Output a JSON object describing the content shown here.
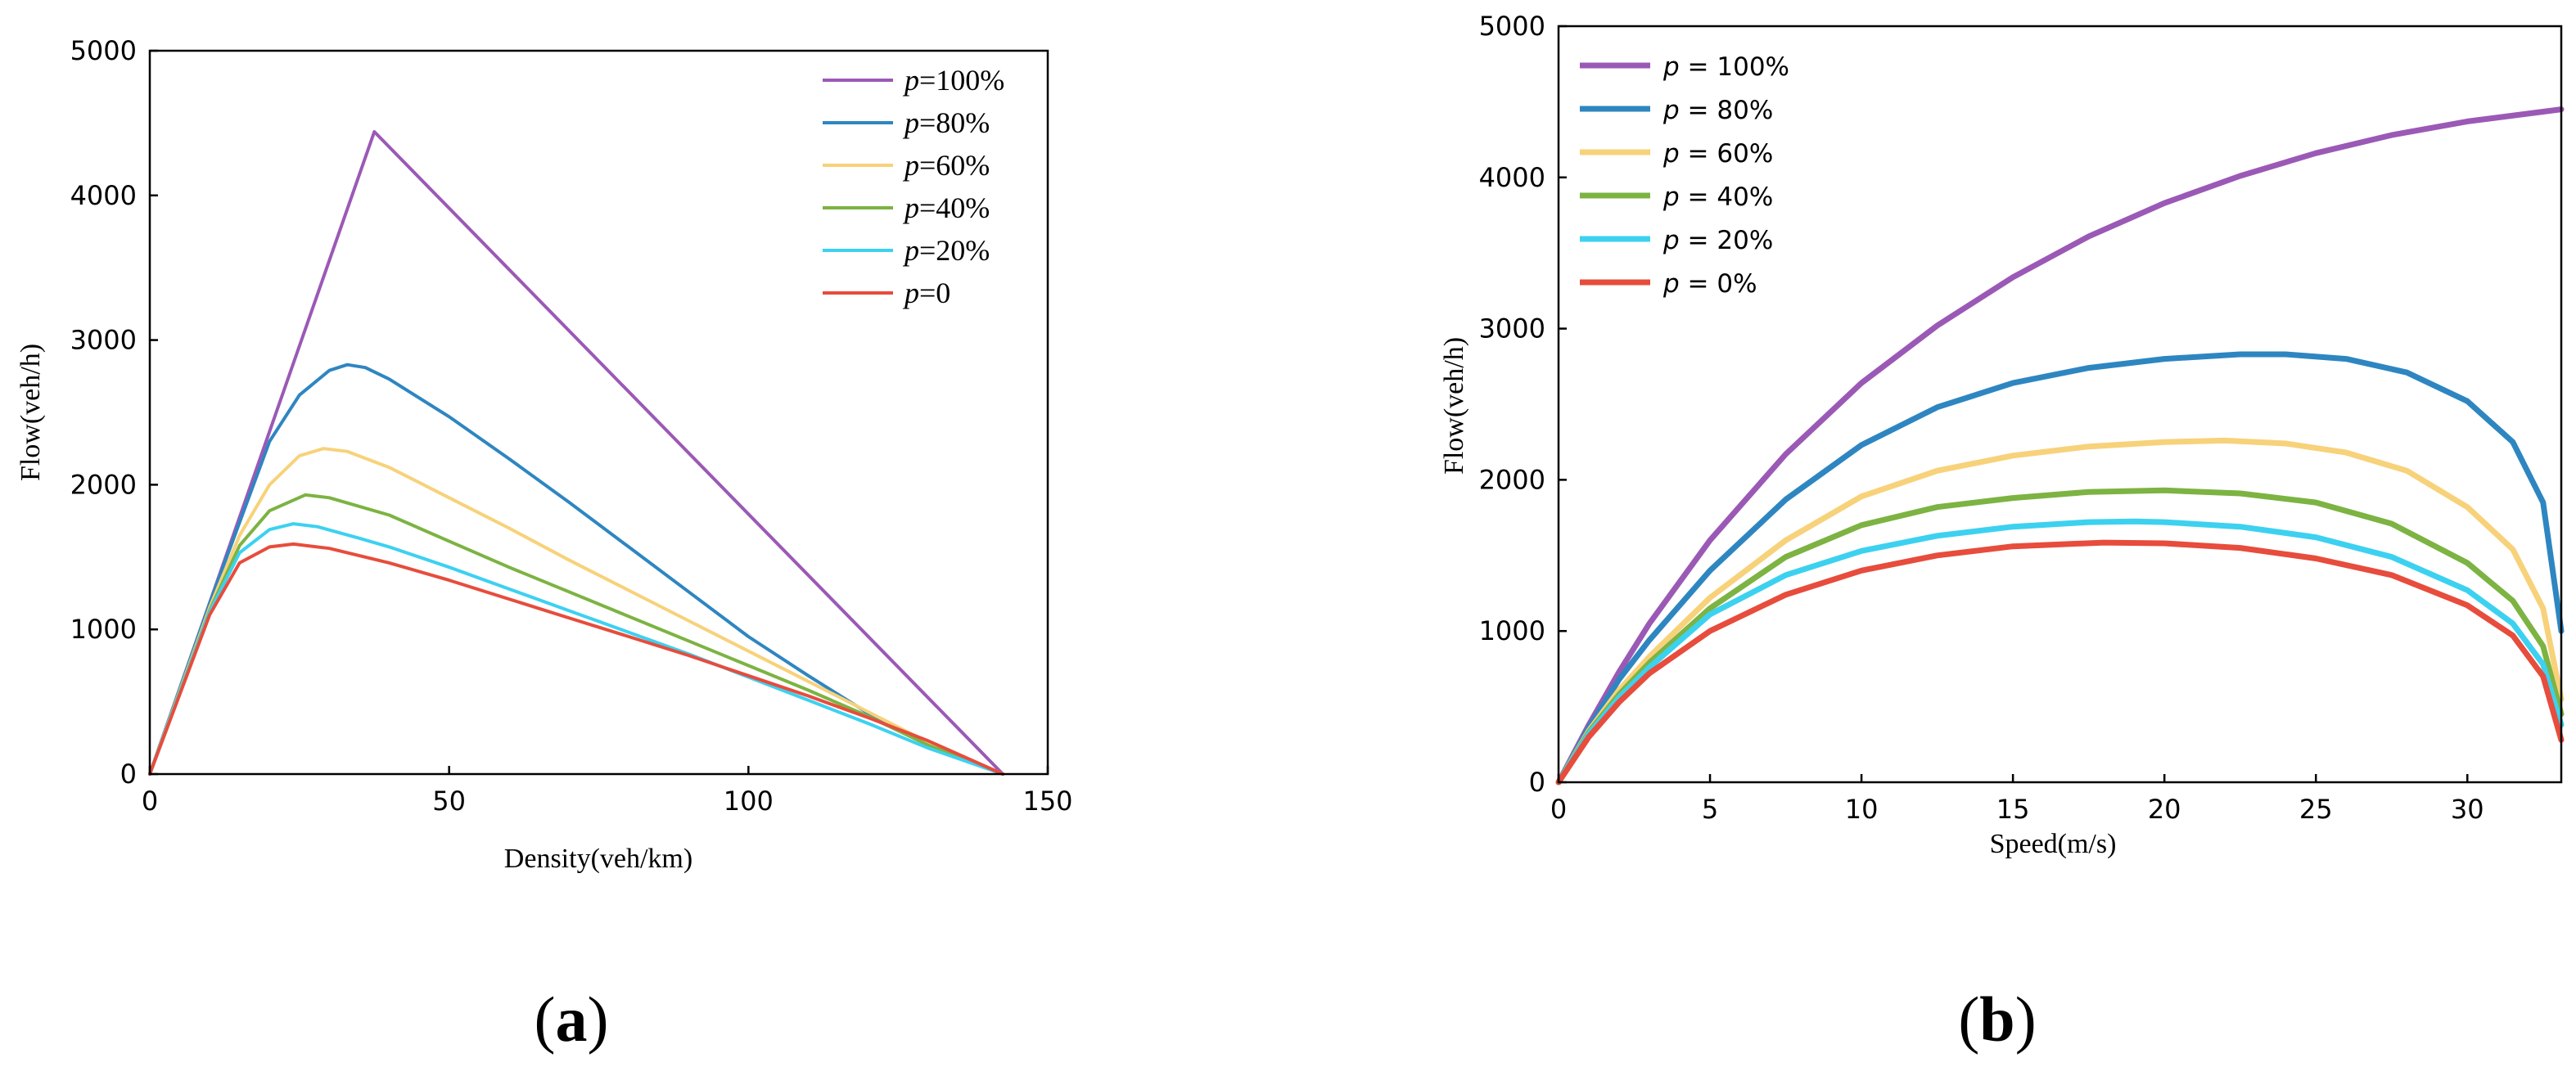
{
  "chart_data": [
    {
      "id": "a",
      "type": "line",
      "panel_label": "(a)",
      "panel_letter": "a",
      "xlabel": "Density(veh/km)",
      "ylabel": "Flow(veh/h)",
      "xlim": [
        0,
        150
      ],
      "ylim": [
        0,
        5000
      ],
      "xticks": [
        "0",
        "50",
        "100",
        "150"
      ],
      "yticks": [
        "0",
        "1000",
        "2000",
        "3000",
        "4000",
        "5000"
      ],
      "legend_position": "top-right",
      "series": [
        {
          "name": "p=100%",
          "legend": {
            "italic": "p",
            "rest": "=100%"
          },
          "color": "#9b59b6",
          "x": [
            0,
            37.5,
            142.5
          ],
          "y": [
            0,
            4440,
            0
          ]
        },
        {
          "name": "p=80%",
          "legend": {
            "italic": "p",
            "rest": "=80%"
          },
          "color": "#2e86c1",
          "x": [
            0,
            10,
            20,
            25,
            30,
            33,
            36,
            40,
            50,
            60,
            70,
            80,
            90,
            100,
            110,
            120,
            130,
            142.5
          ],
          "y": [
            0,
            1180,
            2300,
            2620,
            2790,
            2830,
            2810,
            2730,
            2470,
            2180,
            1880,
            1570,
            1260,
            950,
            680,
            420,
            200,
            0
          ]
        },
        {
          "name": "p=60%",
          "legend": {
            "italic": "p",
            "rest": "=60%"
          },
          "color": "#f7d27a",
          "x": [
            0,
            10,
            15,
            20,
            25,
            29,
            33,
            40,
            50,
            60,
            70,
            80,
            90,
            100,
            110,
            120,
            130,
            142.5
          ],
          "y": [
            0,
            1150,
            1650,
            2000,
            2200,
            2250,
            2230,
            2120,
            1910,
            1700,
            1480,
            1270,
            1060,
            850,
            640,
            430,
            220,
            0
          ]
        },
        {
          "name": "p=40%",
          "legend": {
            "italic": "p",
            "rest": "=40%"
          },
          "color": "#7cb342",
          "x": [
            0,
            10,
            15,
            20,
            26,
            30,
            40,
            50,
            60,
            70,
            80,
            90,
            100,
            110,
            120,
            130,
            142.5
          ],
          "y": [
            0,
            1130,
            1580,
            1820,
            1930,
            1910,
            1790,
            1610,
            1430,
            1260,
            1090,
            920,
            750,
            580,
            400,
            200,
            0
          ]
        },
        {
          "name": "p=20%",
          "legend": {
            "italic": "p",
            "rest": "=20%"
          },
          "color": "#3dd1f0",
          "x": [
            0,
            10,
            15,
            20,
            24,
            28,
            35,
            40,
            50,
            60,
            70,
            80,
            90,
            100,
            110,
            120,
            130,
            142.5
          ],
          "y": [
            0,
            1120,
            1530,
            1690,
            1730,
            1710,
            1630,
            1570,
            1430,
            1280,
            1130,
            980,
            830,
            670,
            510,
            350,
            180,
            0
          ]
        },
        {
          "name": "p=0",
          "legend": {
            "italic": "p",
            "rest": "=0"
          },
          "color": "#e74c3c",
          "x": [
            0,
            10,
            15,
            20,
            24,
            30,
            40,
            50,
            60,
            70,
            80,
            90,
            100,
            110,
            120,
            130,
            142.5
          ],
          "y": [
            0,
            1100,
            1460,
            1570,
            1590,
            1560,
            1460,
            1340,
            1210,
            1080,
            950,
            820,
            680,
            540,
            390,
            230,
            0
          ]
        }
      ]
    },
    {
      "id": "b",
      "type": "line",
      "panel_label": "(b)",
      "panel_letter": "b",
      "xlabel": "Speed(m/s)",
      "ylabel": "Flow(veh/h)",
      "xlim": [
        0,
        33.1
      ],
      "ylim": [
        0,
        5000
      ],
      "xticks": [
        "0",
        "5",
        "10",
        "15",
        "20",
        "25",
        "30"
      ],
      "yticks": [
        "0",
        "1000",
        "2000",
        "3000",
        "4000",
        "5000"
      ],
      "legend_position": "top-left",
      "series": [
        {
          "name": "p = 100%",
          "legend": {
            "italic": "p",
            "rest": " = 100%"
          },
          "color": "#9b59b6",
          "x": [
            0,
            1,
            2,
            3,
            5,
            7.5,
            10,
            12.5,
            15,
            17.5,
            20,
            22.5,
            25,
            27.5,
            30,
            33.1
          ],
          "y": [
            0,
            380,
            730,
            1050,
            1600,
            2170,
            2640,
            3020,
            3340,
            3610,
            3830,
            4010,
            4160,
            4280,
            4370,
            4450
          ]
        },
        {
          "name": "p = 80%",
          "legend": {
            "italic": "p",
            "rest": " = 80%"
          },
          "color": "#2e86c1",
          "x": [
            0,
            1,
            2,
            3,
            5,
            7.5,
            10,
            12.5,
            15,
            17.5,
            20,
            22.5,
            24,
            26,
            28,
            30,
            31.5,
            32.5,
            33.1
          ],
          "y": [
            0,
            360,
            680,
            940,
            1400,
            1870,
            2230,
            2480,
            2640,
            2740,
            2800,
            2830,
            2830,
            2800,
            2710,
            2520,
            2250,
            1850,
            1000
          ]
        },
        {
          "name": "p = 60%",
          "legend": {
            "italic": "p",
            "rest": " = 60%"
          },
          "color": "#f7d27a",
          "x": [
            0,
            1,
            2,
            3,
            5,
            7.5,
            10,
            12.5,
            15,
            17.5,
            20,
            22,
            24,
            26,
            28,
            30,
            31.5,
            32.5,
            33.1
          ],
          "y": [
            0,
            340,
            610,
            830,
            1220,
            1600,
            1890,
            2060,
            2160,
            2220,
            2250,
            2260,
            2240,
            2180,
            2060,
            1820,
            1540,
            1150,
            550
          ]
        },
        {
          "name": "p = 40%",
          "legend": {
            "italic": "p",
            "rest": " = 40%"
          },
          "color": "#7cb342",
          "x": [
            0,
            1,
            2,
            3,
            5,
            7.5,
            10,
            12.5,
            15,
            17.5,
            20,
            22.5,
            25,
            27.5,
            30,
            31.5,
            32.5,
            33.1
          ],
          "y": [
            0,
            330,
            580,
            790,
            1150,
            1490,
            1700,
            1820,
            1880,
            1920,
            1930,
            1910,
            1850,
            1710,
            1450,
            1200,
            900,
            450
          ]
        },
        {
          "name": "p = 20%",
          "legend": {
            "italic": "p",
            "rest": " = 20%"
          },
          "color": "#3dd1f0",
          "x": [
            0,
            1,
            2,
            3,
            5,
            7.5,
            10,
            12.5,
            15,
            17.5,
            19,
            20,
            22.5,
            25,
            27.5,
            30,
            31.5,
            32.5,
            33.1
          ],
          "y": [
            0,
            320,
            560,
            760,
            1110,
            1370,
            1530,
            1630,
            1690,
            1720,
            1725,
            1720,
            1690,
            1620,
            1490,
            1270,
            1050,
            780,
            380
          ]
        },
        {
          "name": "p = 0%",
          "legend": {
            "italic": "p",
            "rest": " = 0%"
          },
          "color": "#e74c3c",
          "x": [
            0,
            1,
            2,
            3,
            5,
            7.5,
            10,
            12.5,
            15,
            18,
            20,
            22.5,
            25,
            27.5,
            30,
            31.5,
            32.5,
            33.1
          ],
          "y": [
            0,
            300,
            530,
            720,
            1000,
            1240,
            1400,
            1500,
            1560,
            1585,
            1580,
            1550,
            1480,
            1370,
            1170,
            970,
            700,
            280
          ]
        }
      ]
    }
  ]
}
